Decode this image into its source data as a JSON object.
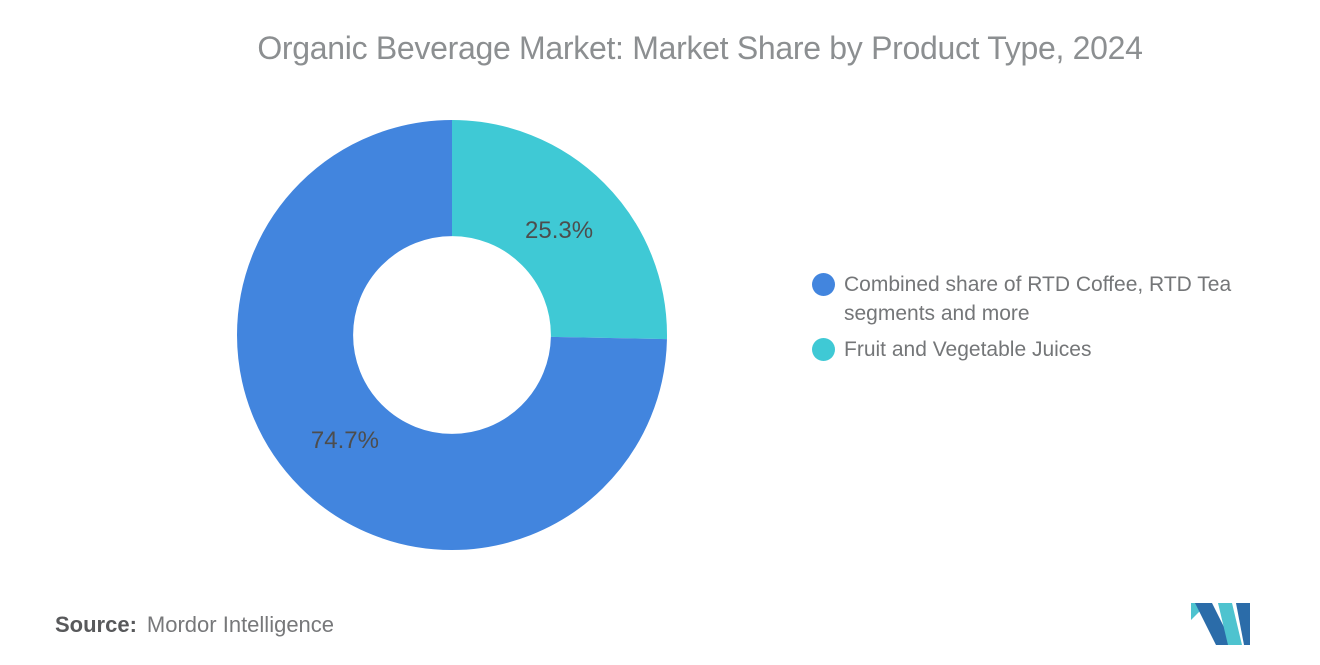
{
  "title": "Organic Beverage Market: Market Share by Product Type, 2024",
  "chart_data": {
    "type": "pie",
    "donut": true,
    "title": "Organic Beverage Market: Market Share by Product Type, 2024",
    "segments": [
      {
        "label": "Combined share of RTD Coffee, RTD Tea segments and more",
        "value": 74.7,
        "color": "#4285DE"
      },
      {
        "label": "Fruit and Vegetable Juices",
        "value": 25.3,
        "color": "#3FC9D5"
      }
    ],
    "value_format": "percent",
    "start_position": "top",
    "direction": "clockwise",
    "order_from_top_clockwise": [
      "Fruit and Vegetable Juices",
      "Combined share of RTD Coffee, RTD Tea segments and more"
    ],
    "inner_radius_ratio": 0.46,
    "legend_position": "right",
    "label_color": "#4d4d4d"
  },
  "source": {
    "label": "Source:",
    "value": "Mordor Intelligence"
  },
  "logo": {
    "name": "mordor-intelligence-logo",
    "blue": "#2B6CA9",
    "teal": "#4EC3CF"
  }
}
